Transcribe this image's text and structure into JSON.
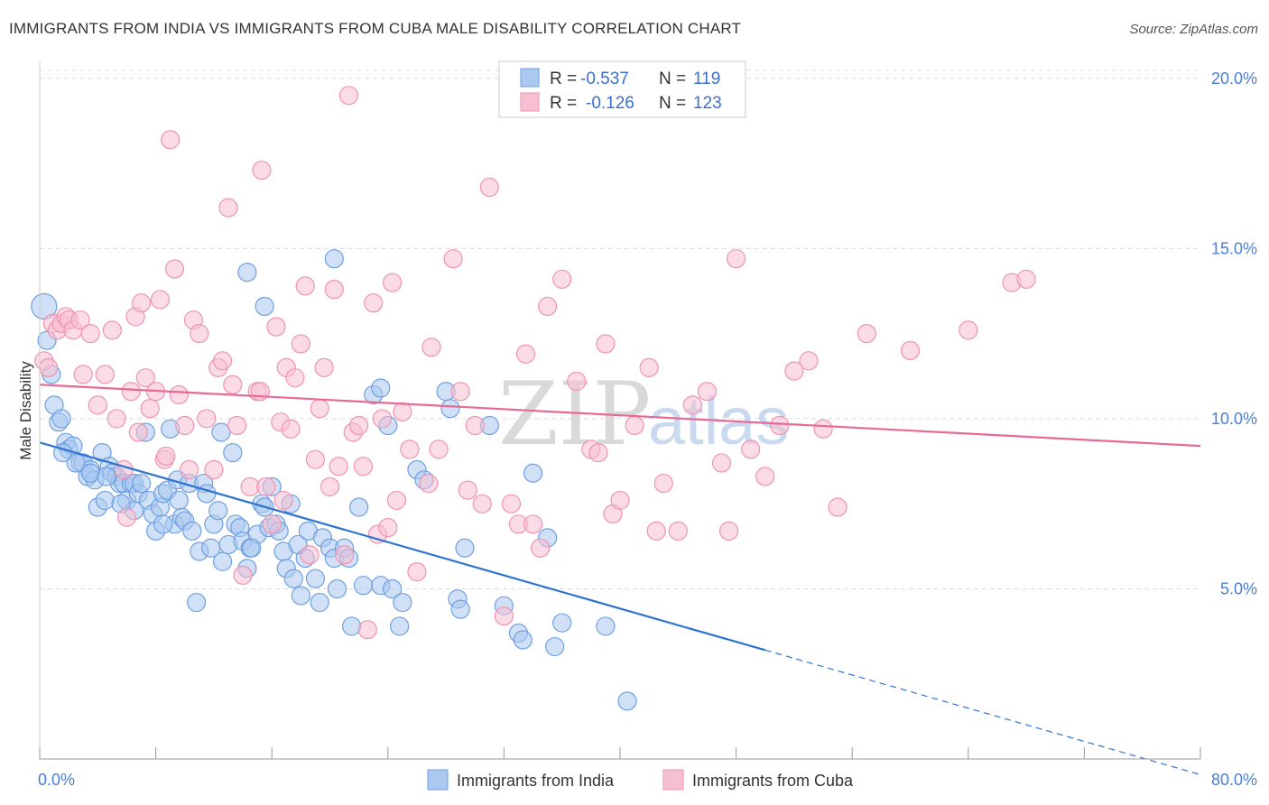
{
  "header": {
    "title": "IMMIGRANTS FROM INDIA VS IMMIGRANTS FROM CUBA MALE DISABILITY CORRELATION CHART",
    "source": "Source: ZipAtlas.com"
  },
  "legend": {
    "india": {
      "r_label": "R = ",
      "r_value": "-0.537",
      "n_label": "N = ",
      "n_value": "119"
    },
    "cuba": {
      "r_label": "R = ",
      "r_value": "-0.126",
      "n_label": "N = ",
      "n_value": "123"
    }
  },
  "watermark": {
    "zip": "ZIP",
    "atlas": "atlas"
  },
  "chart_data": {
    "type": "scatter",
    "title": "IMMIGRANTS FROM INDIA VS IMMIGRANTS FROM CUBA MALE DISABILITY CORRELATION CHART",
    "ylabel": "Male Disability",
    "xlabel": "",
    "xlim": [
      0,
      80
    ],
    "ylim": [
      0,
      20.5
    ],
    "x_tick_labels": [
      "0.0%",
      "80.0%"
    ],
    "y_ticks": [
      5,
      10,
      15,
      20
    ],
    "y_tick_labels": [
      "5.0%",
      "10.0%",
      "15.0%",
      "20.0%"
    ],
    "grid": true,
    "legend_position": "top-center",
    "colors": {
      "india_fill": "#aac8f0",
      "india_stroke": "#6e9fe0",
      "india_line": "#2f74d0",
      "cuba_fill": "#f7bfd2",
      "cuba_stroke": "#ee93b2",
      "cuba_line": "#e66a94"
    },
    "series": [
      {
        "name": "Immigrants from India",
        "trend": {
          "x0": 0,
          "y0": 9.3,
          "x1": 50,
          "y1": 3.2,
          "dash_to_x": 80
        },
        "points": [
          [
            0.3,
            13.3
          ],
          [
            0.5,
            12.3
          ],
          [
            0.8,
            11.3
          ],
          [
            1,
            10.4
          ],
          [
            1.3,
            9.9
          ],
          [
            1.5,
            10
          ],
          [
            1.8,
            9.3
          ],
          [
            2,
            9.1
          ],
          [
            2.3,
            9.2
          ],
          [
            2.8,
            8.7
          ],
          [
            3,
            8.7
          ],
          [
            3.3,
            8.3
          ],
          [
            3.5,
            8.5
          ],
          [
            3.8,
            8.2
          ],
          [
            4,
            7.4
          ],
          [
            4.3,
            9
          ],
          [
            4.5,
            7.6
          ],
          [
            4.8,
            8.6
          ],
          [
            5,
            8.4
          ],
          [
            5.3,
            8.3
          ],
          [
            5.5,
            8.1
          ],
          [
            5.8,
            8.1
          ],
          [
            6,
            7.6
          ],
          [
            6.3,
            8.1
          ],
          [
            6.5,
            8.1
          ],
          [
            6.8,
            7.8
          ],
          [
            7,
            8.1
          ],
          [
            7.3,
            9.6
          ],
          [
            7.5,
            7.6
          ],
          [
            7.8,
            7.2
          ],
          [
            8,
            6.7
          ],
          [
            8.3,
            7.4
          ],
          [
            8.5,
            7.8
          ],
          [
            8.8,
            7.9
          ],
          [
            9,
            9.7
          ],
          [
            9.3,
            6.9
          ],
          [
            9.5,
            8.2
          ],
          [
            9.8,
            7.1
          ],
          [
            10,
            7
          ],
          [
            10.3,
            8.1
          ],
          [
            10.5,
            6.7
          ],
          [
            10.8,
            4.6
          ],
          [
            11,
            6.1
          ],
          [
            11.3,
            8.1
          ],
          [
            11.5,
            7.8
          ],
          [
            12,
            6.9
          ],
          [
            12.3,
            7.3
          ],
          [
            12.5,
            9.6
          ],
          [
            13,
            6.3
          ],
          [
            13.3,
            9
          ],
          [
            13.5,
            6.9
          ],
          [
            13.8,
            6.8
          ],
          [
            14,
            6.4
          ],
          [
            14.3,
            5.6
          ],
          [
            14.5,
            6.2
          ],
          [
            15,
            6.6
          ],
          [
            15.3,
            7.5
          ],
          [
            15.5,
            7.4
          ],
          [
            15.8,
            6.8
          ],
          [
            16,
            8
          ],
          [
            16.3,
            6.9
          ],
          [
            16.5,
            6.7
          ],
          [
            16.8,
            6.1
          ],
          [
            17,
            5.6
          ],
          [
            17.3,
            7.5
          ],
          [
            17.5,
            5.3
          ],
          [
            18,
            4.8
          ],
          [
            18.3,
            5.9
          ],
          [
            18.5,
            6.7
          ],
          [
            19,
            5.3
          ],
          [
            19.3,
            4.6
          ],
          [
            19.5,
            6.5
          ],
          [
            20,
            6.2
          ],
          [
            20.3,
            5.9
          ],
          [
            20.5,
            5
          ],
          [
            21,
            6.2
          ],
          [
            21.5,
            3.9
          ],
          [
            22,
            7.4
          ],
          [
            22.3,
            5.1
          ],
          [
            23,
            10.7
          ],
          [
            23.5,
            5.1
          ],
          [
            24,
            9.8
          ],
          [
            24.3,
            5
          ],
          [
            24.8,
            3.9
          ],
          [
            25,
            4.6
          ],
          [
            26,
            8.5
          ],
          [
            26.5,
            8.2
          ],
          [
            28,
            10.8
          ],
          [
            28.3,
            10.3
          ],
          [
            28.8,
            4.7
          ],
          [
            29,
            4.4
          ],
          [
            29.3,
            6.2
          ],
          [
            31,
            9.8
          ],
          [
            32,
            4.5
          ],
          [
            33,
            3.7
          ],
          [
            33.3,
            3.5
          ],
          [
            34,
            8.4
          ],
          [
            35,
            6.5
          ],
          [
            35.5,
            3.3
          ],
          [
            36,
            4
          ],
          [
            14.3,
            14.3
          ],
          [
            15.5,
            13.3
          ],
          [
            20.3,
            14.7
          ],
          [
            23.5,
            10.9
          ],
          [
            39,
            3.9
          ],
          [
            40.5,
            1.7
          ],
          [
            8.5,
            6.9
          ],
          [
            6.5,
            7.3
          ],
          [
            12.6,
            5.8
          ],
          [
            11.8,
            6.2
          ],
          [
            9.6,
            7.6
          ],
          [
            14.6,
            6.2
          ],
          [
            17.8,
            6.3
          ],
          [
            21.3,
            5.9
          ],
          [
            5.6,
            7.5
          ],
          [
            3.5,
            8.4
          ],
          [
            2.5,
            8.7
          ],
          [
            1.6,
            9
          ],
          [
            4.6,
            8.3
          ]
        ]
      },
      {
        "name": "Immigrants from Cuba",
        "trend": {
          "x0": 0,
          "y0": 11.0,
          "x1": 80,
          "y1": 9.2
        },
        "points": [
          [
            0.3,
            11.7
          ],
          [
            0.6,
            11.5
          ],
          [
            0.9,
            12.8
          ],
          [
            1.2,
            12.6
          ],
          [
            1.5,
            12.8
          ],
          [
            1.8,
            13
          ],
          [
            2,
            12.9
          ],
          [
            2.3,
            12.6
          ],
          [
            2.8,
            12.9
          ],
          [
            3,
            11.3
          ],
          [
            3.5,
            12.5
          ],
          [
            4,
            10.4
          ],
          [
            4.5,
            11.3
          ],
          [
            5,
            12.6
          ],
          [
            5.3,
            10
          ],
          [
            5.8,
            8.5
          ],
          [
            6,
            7.1
          ],
          [
            6.3,
            10.8
          ],
          [
            6.6,
            13
          ],
          [
            7,
            13.4
          ],
          [
            7.3,
            11.2
          ],
          [
            7.6,
            10.3
          ],
          [
            8,
            10.8
          ],
          [
            8.3,
            13.5
          ],
          [
            8.6,
            8.8
          ],
          [
            9,
            18.2
          ],
          [
            9.3,
            14.4
          ],
          [
            9.6,
            10.7
          ],
          [
            10,
            9.8
          ],
          [
            10.3,
            8.5
          ],
          [
            10.6,
            12.9
          ],
          [
            11,
            12.5
          ],
          [
            11.5,
            10
          ],
          [
            12,
            8.5
          ],
          [
            12.3,
            11.5
          ],
          [
            12.6,
            11.7
          ],
          [
            13,
            16.2
          ],
          [
            13.3,
            11
          ],
          [
            13.6,
            9.8
          ],
          [
            14,
            5.4
          ],
          [
            14.5,
            8
          ],
          [
            15,
            10.8
          ],
          [
            15.3,
            17.3
          ],
          [
            15.6,
            8
          ],
          [
            16,
            6.9
          ],
          [
            16.3,
            12.7
          ],
          [
            16.6,
            9.9
          ],
          [
            17,
            11.5
          ],
          [
            17.3,
            9.7
          ],
          [
            17.6,
            11.2
          ],
          [
            18,
            12.2
          ],
          [
            18.3,
            13.9
          ],
          [
            18.6,
            6
          ],
          [
            19,
            8.8
          ],
          [
            19.3,
            10.3
          ],
          [
            19.6,
            11.5
          ],
          [
            20,
            8
          ],
          [
            20.3,
            13.8
          ],
          [
            20.6,
            8.6
          ],
          [
            21,
            6
          ],
          [
            21.3,
            19.5
          ],
          [
            21.6,
            9.6
          ],
          [
            22,
            9.8
          ],
          [
            22.3,
            8.6
          ],
          [
            22.6,
            3.8
          ],
          [
            23,
            13.4
          ],
          [
            23.3,
            6.6
          ],
          [
            23.6,
            10
          ],
          [
            24,
            6.8
          ],
          [
            24.3,
            14
          ],
          [
            24.6,
            7.6
          ],
          [
            25,
            10.2
          ],
          [
            25.5,
            9.1
          ],
          [
            26,
            5.5
          ],
          [
            27,
            12.1
          ],
          [
            27.5,
            9.1
          ],
          [
            28.5,
            14.7
          ],
          [
            29,
            10.8
          ],
          [
            29.5,
            7.9
          ],
          [
            30,
            9.8
          ],
          [
            30.5,
            7.5
          ],
          [
            31,
            16.8
          ],
          [
            32,
            4.2
          ],
          [
            33,
            6.9
          ],
          [
            33.5,
            11.9
          ],
          [
            34,
            6.9
          ],
          [
            34.5,
            6.2
          ],
          [
            35,
            13.3
          ],
          [
            36,
            14.1
          ],
          [
            37,
            11.1
          ],
          [
            38,
            9.1
          ],
          [
            38.5,
            9
          ],
          [
            39,
            12.2
          ],
          [
            39.5,
            7.2
          ],
          [
            40,
            7.6
          ],
          [
            41,
            9.8
          ],
          [
            42,
            11.5
          ],
          [
            43,
            8.1
          ],
          [
            44,
            6.7
          ],
          [
            45,
            10.4
          ],
          [
            46,
            10.8
          ],
          [
            47,
            8.7
          ],
          [
            48,
            14.7
          ],
          [
            49,
            9.1
          ],
          [
            50,
            8.3
          ],
          [
            51,
            9.8
          ],
          [
            52,
            11.4
          ],
          [
            53,
            11.7
          ],
          [
            54,
            9.7
          ],
          [
            55,
            7.4
          ],
          [
            57,
            12.5
          ],
          [
            60,
            12
          ],
          [
            64,
            12.6
          ],
          [
            67,
            14
          ],
          [
            68,
            14.1
          ],
          [
            42.5,
            6.7
          ],
          [
            47.5,
            6.7
          ],
          [
            32.5,
            7.5
          ],
          [
            16.8,
            7.6
          ],
          [
            15.2,
            10.8
          ],
          [
            6.8,
            9.6
          ],
          [
            8.7,
            8.9
          ],
          [
            26.8,
            8.1
          ]
        ]
      }
    ]
  },
  "bottom_legend": {
    "india_label": "Immigrants from India",
    "cuba_label": "Immigrants from Cuba"
  }
}
